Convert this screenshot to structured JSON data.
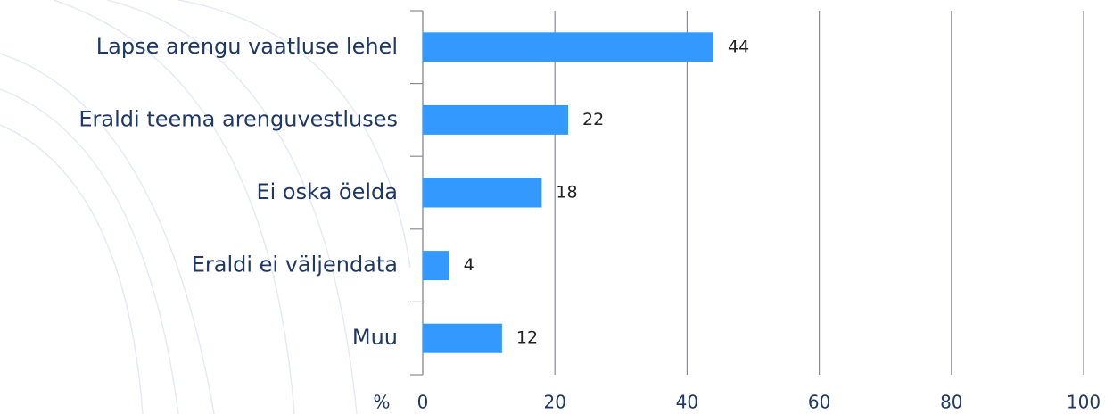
{
  "chart_data": {
    "type": "bar",
    "orientation": "horizontal",
    "categories": [
      "Lapse arengu vaatluse lehel",
      "Eraldi teema arenguvestluses",
      "Ei oska öelda",
      "Eraldi ei väljendata",
      "Muu"
    ],
    "values": [
      44,
      22,
      18,
      4,
      12
    ],
    "color": "#3399ff",
    "x_label": "%",
    "xlim": [
      0,
      100
    ],
    "xticks": [
      0,
      20,
      40,
      60,
      80,
      100
    ],
    "grid": true
  }
}
